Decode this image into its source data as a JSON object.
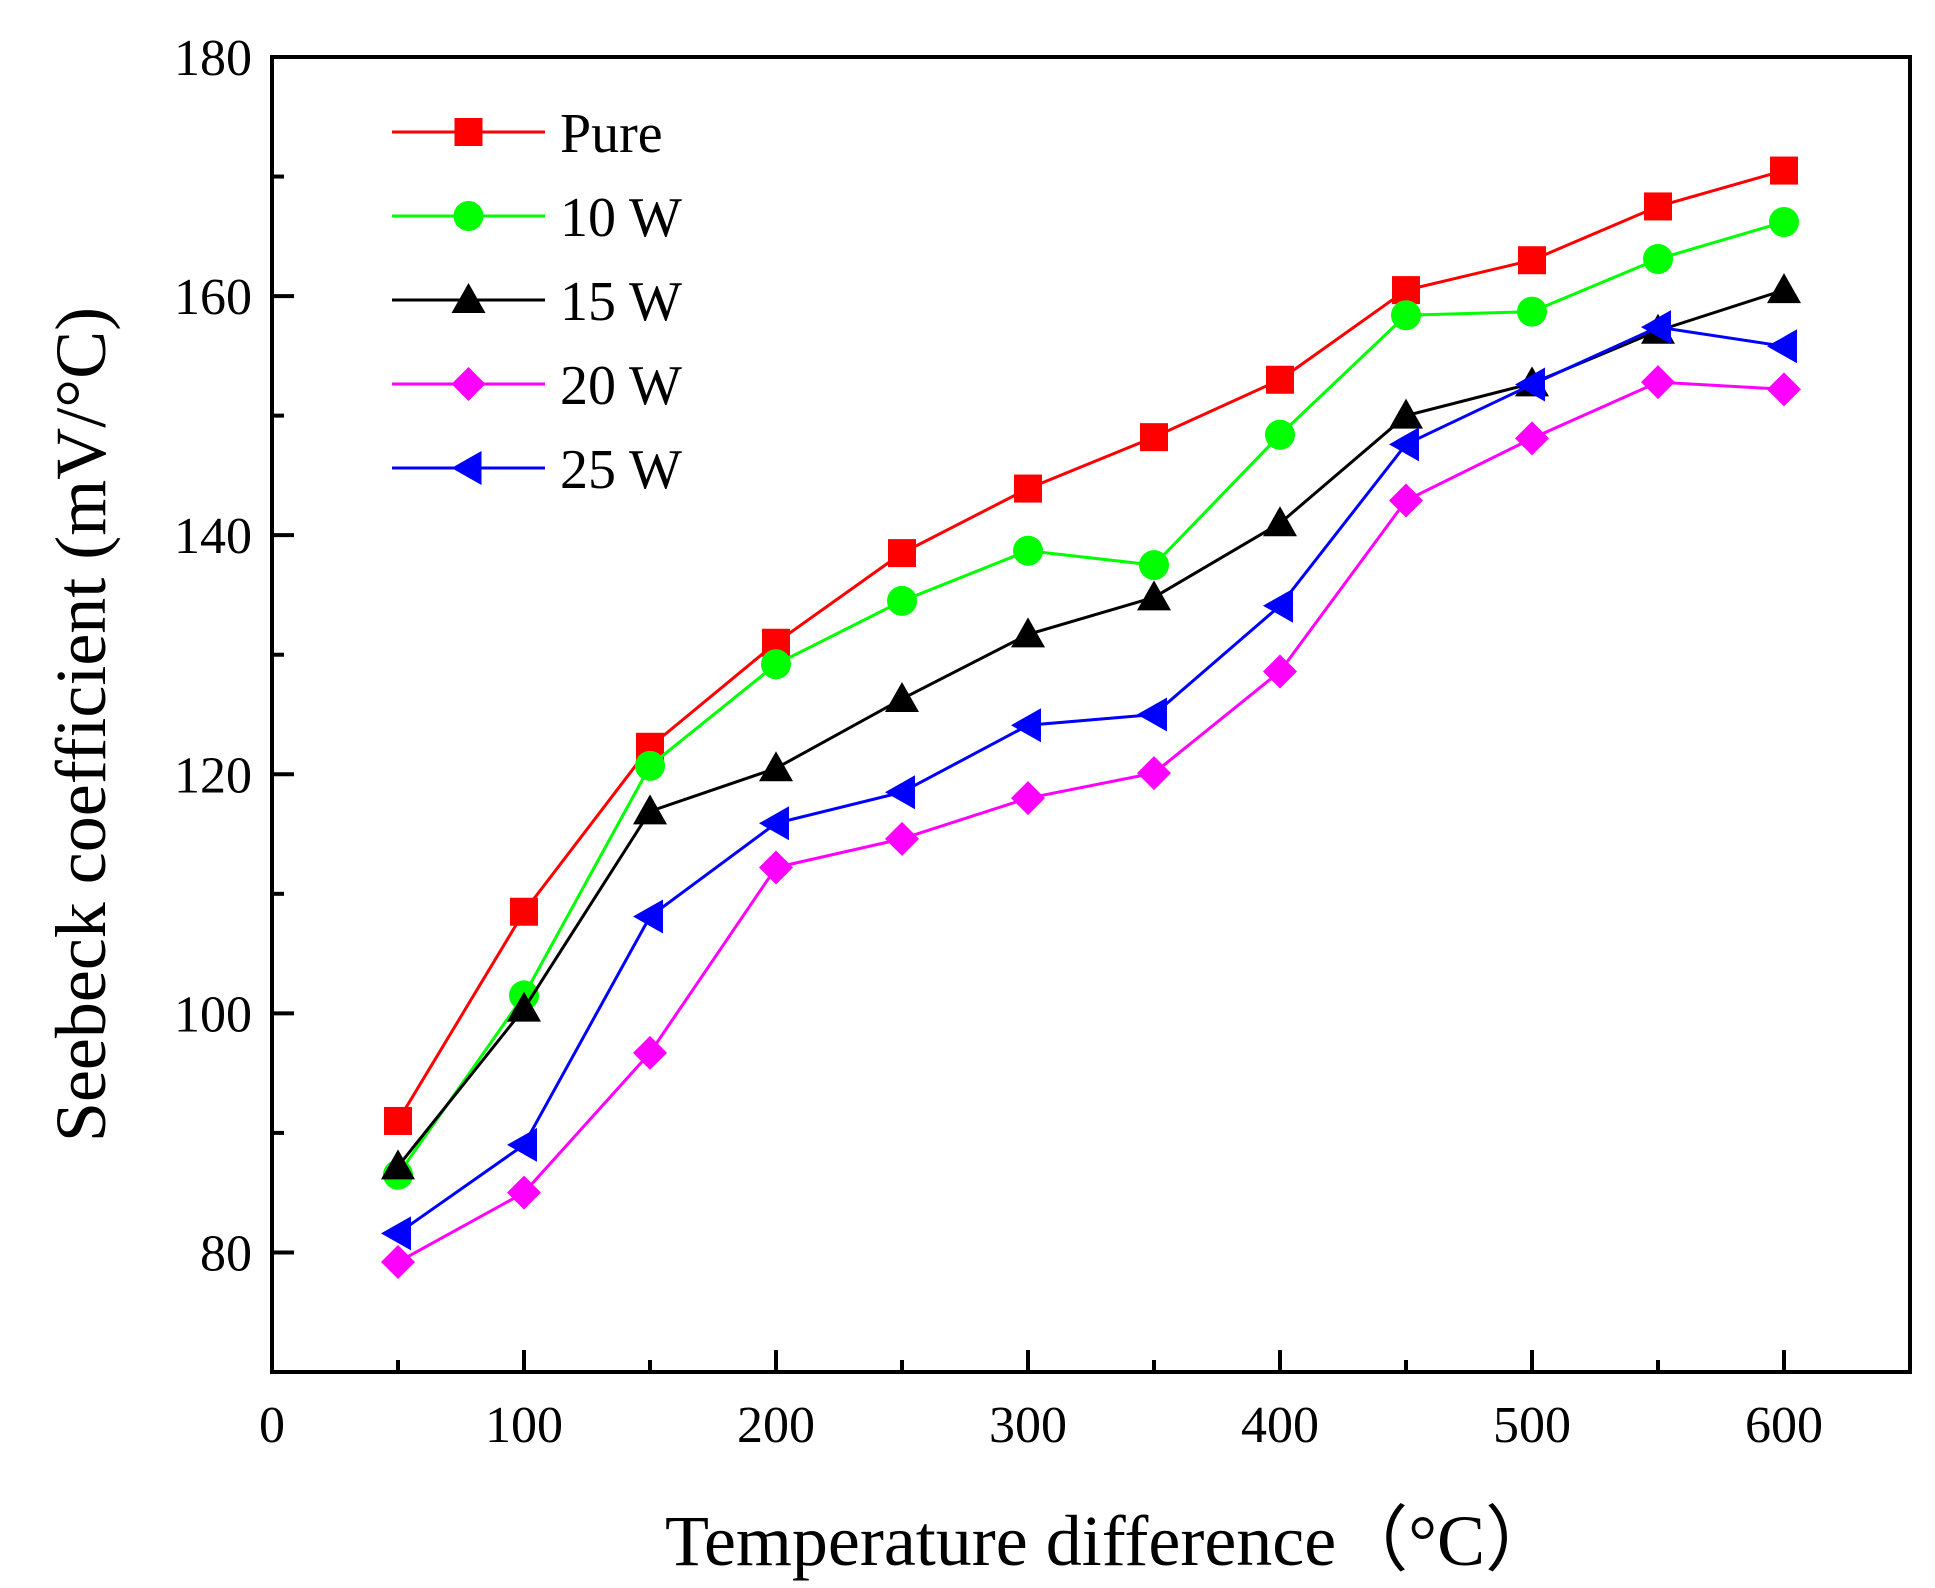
{
  "chart_data": {
    "type": "line",
    "xlabel": "Temperature difference（°C）",
    "ylabel": "Seebeck coefficient (mV/°C)",
    "xlim": [
      0,
      650
    ],
    "ylim": [
      70,
      180
    ],
    "x_ticks": [
      0,
      100,
      200,
      300,
      400,
      500,
      600
    ],
    "x_tick_labels": [
      "0",
      "100",
      "200",
      "300",
      "400",
      "500",
      "600"
    ],
    "y_ticks": [
      80,
      100,
      120,
      140,
      160,
      180
    ],
    "y_tick_labels": [
      "80",
      "100",
      "120",
      "140",
      "160",
      "180"
    ],
    "legend_position": "top-left",
    "x": [
      50,
      100,
      150,
      200,
      250,
      300,
      350,
      400,
      450,
      500,
      550,
      600
    ],
    "series": [
      {
        "name": "Pure",
        "color": "#ff0000",
        "marker": "square",
        "values": [
          91.0,
          108.5,
          122.3,
          131.0,
          138.5,
          143.9,
          148.2,
          153.0,
          160.5,
          163.0,
          167.5,
          170.5
        ]
      },
      {
        "name": "10 W",
        "color": "#00ff00",
        "marker": "circle",
        "values": [
          86.5,
          101.5,
          120.7,
          129.2,
          134.5,
          138.7,
          137.5,
          148.4,
          158.4,
          158.7,
          163.1,
          166.2
        ]
      },
      {
        "name": "15 W",
        "color": "#000000",
        "marker": "triangle-up",
        "values": [
          87.2,
          100.4,
          116.9,
          120.5,
          126.3,
          131.7,
          134.8,
          141.0,
          150.0,
          152.7,
          157.1,
          160.5
        ]
      },
      {
        "name": "20 W",
        "color": "#ff00ff",
        "marker": "diamond",
        "values": [
          79.2,
          85.0,
          96.7,
          112.2,
          114.6,
          118.0,
          120.1,
          128.6,
          142.9,
          148.1,
          152.8,
          152.2
        ]
      },
      {
        "name": "25 W",
        "color": "#0000ff",
        "marker": "triangle-left",
        "values": [
          81.6,
          89.0,
          108.1,
          115.9,
          118.5,
          124.1,
          125.0,
          134.1,
          147.6,
          152.6,
          157.4,
          155.8
        ]
      }
    ]
  }
}
